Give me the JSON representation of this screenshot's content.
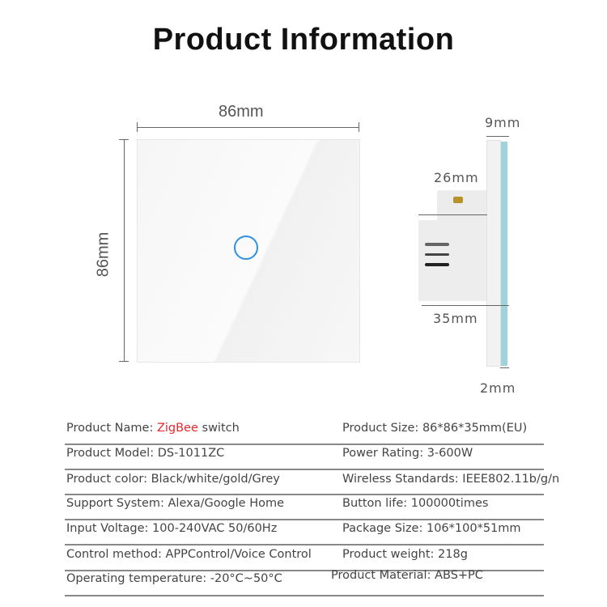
{
  "title": "Product Information",
  "front_view": {
    "width_label": "86mm",
    "height_label": "86mm",
    "button_ring_color": "#2f8fe0"
  },
  "side_view": {
    "labels": {
      "frame": "9mm",
      "body_top": "26mm",
      "depth": "35mm",
      "glass": "2mm"
    },
    "glass_color": "#9fd3dc"
  },
  "specs": {
    "left": [
      {
        "label": "Product Name:",
        "value_highlight": "ZigBee",
        "value": " switch"
      },
      {
        "label": "Product Model:",
        "value": "DS-1011ZC"
      },
      {
        "label": "Product color:",
        "value": "Black/white/gold/Grey"
      },
      {
        "label": "Support System:",
        "value": "Alexa/Google Home"
      },
      {
        "label": "Input Voltage:",
        "value": "100-240VAC 50/60Hz"
      },
      {
        "label": "Control method:",
        "value": "APPControl/Voice Control"
      },
      {
        "label": "Operating temperature:",
        "value": "-20°C~50°C"
      }
    ],
    "right": [
      {
        "label": "Product Size:",
        "value": "86*86*35mm(EU)"
      },
      {
        "label": "Power Rating:",
        "value": "3-600W"
      },
      {
        "label": "Wireless Standards:",
        "value": "IEEE802.11b/g/n"
      },
      {
        "label": "Button life:",
        "value": "100000times"
      },
      {
        "label": "Package Size:",
        "value": "106*100*51mm"
      },
      {
        "label": "Product weight:",
        "value": "218g"
      },
      {
        "label": "Product Material:",
        "value": "ABS+PC"
      }
    ],
    "highlight_color": "#e5282d"
  }
}
